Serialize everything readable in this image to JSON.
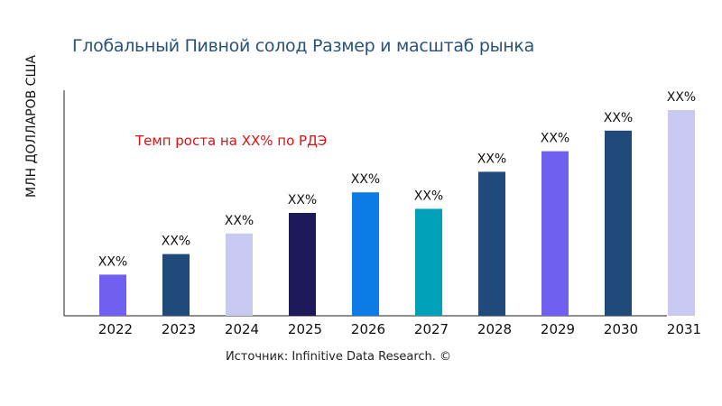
{
  "chart_data": {
    "type": "bar",
    "title": "Глобальный Пивной солод Размер и масштаб рынка",
    "xlabel": "",
    "ylabel": "МЛН ДОЛЛАРОВ США",
    "categories": [
      "2022",
      "2023",
      "2024",
      "2025",
      "2026",
      "2027",
      "2028",
      "2029",
      "2030",
      "2031"
    ],
    "values": [
      20,
      30,
      40,
      50,
      60,
      52,
      70,
      80,
      90,
      100
    ],
    "data_labels": [
      "XX%",
      "XX%",
      "XX%",
      "XX%",
      "XX%",
      "XX%",
      "XX%",
      "XX%",
      "XX%",
      "XX%"
    ],
    "colors": [
      "#7060f0",
      "#1f4a7a",
      "#c8c8f0",
      "#1e1a5a",
      "#0c7be6",
      "#00a0b8",
      "#1f4a7a",
      "#7060f0",
      "#1f4a7a",
      "#c8c8f0"
    ],
    "ylim": [
      0,
      100
    ],
    "grid": false,
    "annotation": "Темп роста на XX% по РДЭ",
    "annotation_color": "#e01010"
  },
  "source": "Источник: Infinitive Data Research. ©"
}
